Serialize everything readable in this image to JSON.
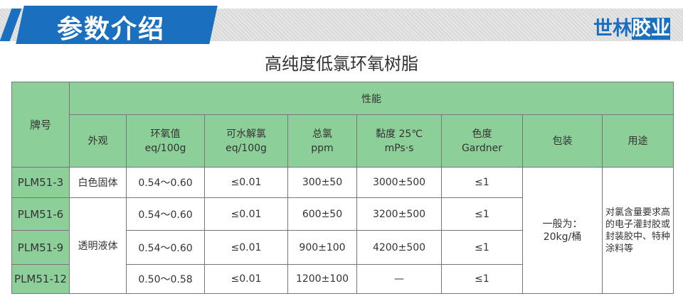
{
  "header": {
    "banner": "参数介绍",
    "brand_a": "世林",
    "brand_b": "胶业"
  },
  "title": "高纯度低氯环氧树脂",
  "table": {
    "brand_header": "牌号",
    "group_header": "性能",
    "columns": [
      "外观",
      "环氧值\neq/100g",
      "可水解氯\neq/100g",
      "总氯\nppm",
      "黏度 25℃\nmPs·s",
      "色度\nGardner",
      "包装",
      "用途"
    ],
    "rows": [
      {
        "brand": "PLM51-3",
        "epoxy": "0.54～0.60",
        "hydro_cl": "≤0.01",
        "total_cl": "300±50",
        "viscosity": "3000±500",
        "color": "≤1"
      },
      {
        "brand": "PLM51-6",
        "epoxy": "0.54～0.60",
        "hydro_cl": "≤0.01",
        "total_cl": "600±50",
        "viscosity": "3200±500",
        "color": "≤1"
      },
      {
        "brand": "PLM51-9",
        "epoxy": "0.54～0.60",
        "hydro_cl": "≤0.01",
        "total_cl": "900±100",
        "viscosity": "4200±500",
        "color": "≤1"
      },
      {
        "brand": "PLM51-12",
        "epoxy": "0.50～0.58",
        "hydro_cl": "≤0.01",
        "total_cl": "1200±100",
        "viscosity": "—",
        "color": "≤1"
      }
    ],
    "appearance_solid": "白色固体",
    "appearance_liquid": "透明液体",
    "packaging": "一般为：\n20kg/桶",
    "usage": "对氯含量要求高的电子灌封胶或封装胶中、特种涂料等"
  }
}
